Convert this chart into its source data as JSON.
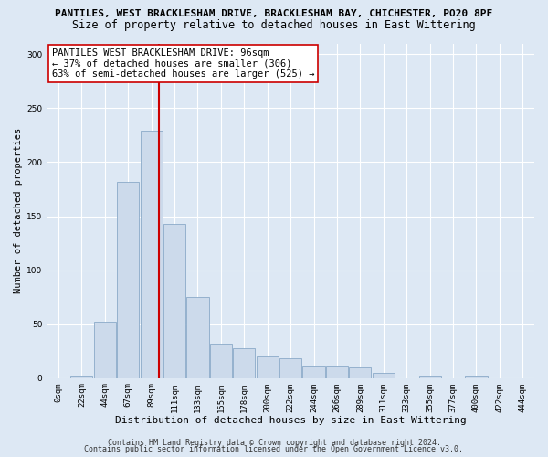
{
  "title1": "PANTILES, WEST BRACKLESHAM DRIVE, BRACKLESHAM BAY, CHICHESTER, PO20 8PF",
  "title2": "Size of property relative to detached houses in East Wittering",
  "xlabel": "Distribution of detached houses by size in East Wittering",
  "ylabel": "Number of detached properties",
  "bar_labels": [
    "0sqm",
    "22sqm",
    "44sqm",
    "67sqm",
    "89sqm",
    "111sqm",
    "133sqm",
    "155sqm",
    "178sqm",
    "200sqm",
    "222sqm",
    "244sqm",
    "266sqm",
    "289sqm",
    "311sqm",
    "333sqm",
    "355sqm",
    "377sqm",
    "400sqm",
    "422sqm",
    "444sqm"
  ],
  "bar_heights": [
    0,
    2,
    52,
    182,
    229,
    143,
    75,
    32,
    28,
    20,
    18,
    12,
    12,
    10,
    5,
    0,
    2,
    0,
    2,
    0,
    0
  ],
  "bar_color": "#ccdaeb",
  "bar_edge_color": "#8aaac8",
  "vline_x": 4.32,
  "vline_color": "#cc0000",
  "ylim": [
    0,
    310
  ],
  "yticks": [
    0,
    50,
    100,
    150,
    200,
    250,
    300
  ],
  "annotation_text": "PANTILES WEST BRACKLESHAM DRIVE: 96sqm\n← 37% of detached houses are smaller (306)\n63% of semi-detached houses are larger (525) →",
  "annotation_box_color": "#ffffff",
  "annotation_box_edge": "#cc0000",
  "footer1": "Contains HM Land Registry data © Crown copyright and database right 2024.",
  "footer2": "Contains public sector information licensed under the Open Government Licence v3.0.",
  "bg_color": "#dde8f4",
  "grid_color": "#ffffff",
  "title1_fontsize": 8.0,
  "title2_fontsize": 8.5,
  "xlabel_fontsize": 8.0,
  "ylabel_fontsize": 7.5,
  "tick_fontsize": 6.5,
  "annotation_fontsize": 7.5,
  "footer_fontsize": 6.0
}
